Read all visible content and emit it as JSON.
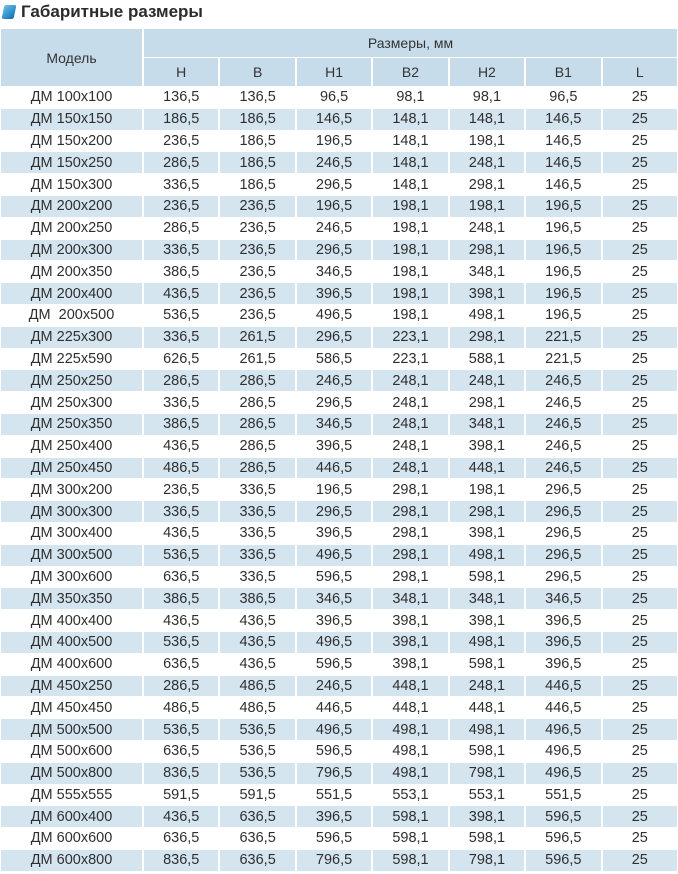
{
  "title": "Габаритные размеры",
  "colors": {
    "header_bg": "#c7dcea",
    "alt_row_bg": "#d4e5f0",
    "icon": "#0a6fb5"
  },
  "table": {
    "model_header": "Модель",
    "group_header": "Размеры, мм",
    "columns": [
      "H",
      "B",
      "H1",
      "B2",
      "H2",
      "B1",
      "L"
    ],
    "rows": [
      [
        "ДМ 100х100",
        "136,5",
        "136,5",
        "96,5",
        "98,1",
        "98,1",
        "96,5",
        "25"
      ],
      [
        "ДМ 150х150",
        "186,5",
        "186,5",
        "146,5",
        "148,1",
        "148,1",
        "146,5",
        "25"
      ],
      [
        "ДМ 150х200",
        "236,5",
        "186,5",
        "196,5",
        "148,1",
        "198,1",
        "146,5",
        "25"
      ],
      [
        "ДМ 150х250",
        "286,5",
        "186,5",
        "246,5",
        "148,1",
        "248,1",
        "146,5",
        "25"
      ],
      [
        "ДМ 150х300",
        "336,5",
        "186,5",
        "296,5",
        "148,1",
        "298,1",
        "146,5",
        "25"
      ],
      [
        "ДМ 200х200",
        "236,5",
        "236,5",
        "196,5",
        "198,1",
        "198,1",
        "196,5",
        "25"
      ],
      [
        "ДМ 200х250",
        "286,5",
        "236,5",
        "246,5",
        "198,1",
        "248,1",
        "196,5",
        "25"
      ],
      [
        "ДМ 200х300",
        "336,5",
        "236,5",
        "296,5",
        "198,1",
        "298,1",
        "196,5",
        "25"
      ],
      [
        "ДМ 200х350",
        "386,5",
        "236,5",
        "346,5",
        "198,1",
        "348,1",
        "196,5",
        "25"
      ],
      [
        "ДМ 200х400",
        "436,5",
        "236,5",
        "396,5",
        "198,1",
        "398,1",
        "196,5",
        "25"
      ],
      [
        "ДМ  200х500",
        "536,5",
        "236,5",
        "496,5",
        "198,1",
        "498,1",
        "196,5",
        "25"
      ],
      [
        "ДМ 225х300",
        "336,5",
        "261,5",
        "296,5",
        "223,1",
        "298,1",
        "221,5",
        "25"
      ],
      [
        "ДМ 225х590",
        "626,5",
        "261,5",
        "586,5",
        "223,1",
        "588,1",
        "221,5",
        "25"
      ],
      [
        "ДМ 250х250",
        "286,5",
        "286,5",
        "246,5",
        "248,1",
        "248,1",
        "246,5",
        "25"
      ],
      [
        "ДМ 250х300",
        "336,5",
        "286,5",
        "296,5",
        "248,1",
        "298,1",
        "246,5",
        "25"
      ],
      [
        "ДМ 250х350",
        "386,5",
        "286,5",
        "346,5",
        "248,1",
        "348,1",
        "246,5",
        "25"
      ],
      [
        "ДМ 250х400",
        "436,5",
        "286,5",
        "396,5",
        "248,1",
        "398,1",
        "246,5",
        "25"
      ],
      [
        "ДМ 250х450",
        "486,5",
        "286,5",
        "446,5",
        "248,1",
        "448,1",
        "246,5",
        "25"
      ],
      [
        "ДМ 300х200",
        "236,5",
        "336,5",
        "196,5",
        "298,1",
        "198,1",
        "296,5",
        "25"
      ],
      [
        "ДМ 300х300",
        "336,5",
        "336,5",
        "296,5",
        "298,1",
        "298,1",
        "296,5",
        "25"
      ],
      [
        "ДМ 300х400",
        "436,5",
        "336,5",
        "396,5",
        "298,1",
        "398,1",
        "296,5",
        "25"
      ],
      [
        "ДМ 300х500",
        "536,5",
        "336,5",
        "496,5",
        "298,1",
        "498,1",
        "296,5",
        "25"
      ],
      [
        "ДМ 300х600",
        "636,5",
        "336,5",
        "596,5",
        "298,1",
        "598,1",
        "296,5",
        "25"
      ],
      [
        "ДМ 350х350",
        "386,5",
        "386,5",
        "346,5",
        "348,1",
        "348,1",
        "346,5",
        "25"
      ],
      [
        "ДМ 400х400",
        "436,5",
        "436,5",
        "396,5",
        "398,1",
        "398,1",
        "396,5",
        "25"
      ],
      [
        "ДМ 400х500",
        "536,5",
        "436,5",
        "496,5",
        "398,1",
        "498,1",
        "396,5",
        "25"
      ],
      [
        "ДМ 400х600",
        "636,5",
        "436,5",
        "596,5",
        "398,1",
        "598,1",
        "396,5",
        "25"
      ],
      [
        "ДМ 450х250",
        "286,5",
        "486,5",
        "246,5",
        "448,1",
        "248,1",
        "446,5",
        "25"
      ],
      [
        "ДМ 450х450",
        "486,5",
        "486,5",
        "446,5",
        "448,1",
        "448,1",
        "446,5",
        "25"
      ],
      [
        "ДМ 500х500",
        "536,5",
        "536,5",
        "496,5",
        "498,1",
        "498,1",
        "496,5",
        "25"
      ],
      [
        "ДМ 500х600",
        "636,5",
        "536,5",
        "596,5",
        "498,1",
        "598,1",
        "496,5",
        "25"
      ],
      [
        "ДМ 500х800",
        "836,5",
        "536,5",
        "796,5",
        "498,1",
        "798,1",
        "496,5",
        "25"
      ],
      [
        "ДМ 555х555",
        "591,5",
        "591,5",
        "551,5",
        "553,1",
        "553,1",
        "551,5",
        "25"
      ],
      [
        "ДМ 600х400",
        "436,5",
        "636,5",
        "396,5",
        "598,1",
        "398,1",
        "596,5",
        "25"
      ],
      [
        "ДМ 600х600",
        "636,5",
        "636,5",
        "596,5",
        "598,1",
        "598,1",
        "596,5",
        "25"
      ],
      [
        "ДМ 600х800",
        "836,5",
        "636,5",
        "796,5",
        "598,1",
        "798,1",
        "596,5",
        "25"
      ]
    ]
  }
}
